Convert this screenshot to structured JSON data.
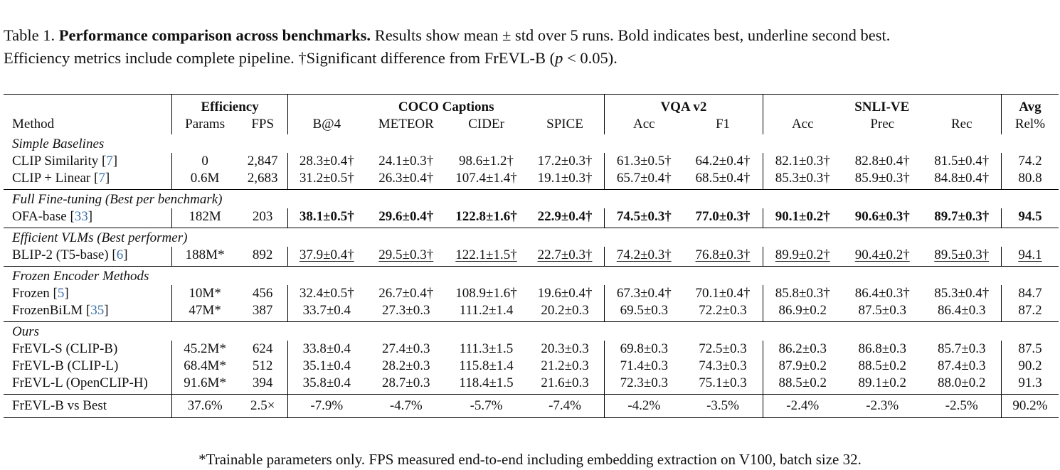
{
  "caption": {
    "label": "Table 1.",
    "title": "Performance comparison across benchmarks.",
    "text_1": "Results show mean ± std over 5 runs. Bold indicates best, underline second best.",
    "text_2": "Efficiency metrics include complete pipeline. †Significant difference from FrEVL-B (",
    "p_var": "p",
    "p_rel": " < 0.05)."
  },
  "groups": {
    "efficiency": "Efficiency",
    "coco": "COCO Captions",
    "vqa": "VQA v2",
    "snli": "SNLI-VE",
    "avg": "Avg"
  },
  "columns": [
    "Method",
    "Params",
    "FPS",
    "B@4",
    "METEOR",
    "CIDEr",
    "SPICE",
    "Acc",
    "F1",
    "Acc",
    "Prec",
    "Rec",
    "Rel%"
  ],
  "sections": [
    {
      "title": "Simple Baselines",
      "rows": [
        {
          "method": "CLIP Similarity",
          "cite": "7",
          "cells": [
            "0",
            "2,847",
            "28.3±0.4†",
            "24.1±0.3†",
            "98.6±1.2†",
            "17.2±0.3†",
            "61.3±0.5†",
            "64.2±0.4†",
            "82.1±0.3†",
            "82.8±0.4†",
            "81.5±0.4†",
            "74.2"
          ]
        },
        {
          "method": "CLIP + Linear",
          "cite": "7",
          "cells": [
            "0.6M",
            "2,683",
            "31.2±0.5†",
            "26.3±0.4†",
            "107.4±1.4†",
            "19.1±0.3†",
            "65.7±0.4†",
            "68.5±0.4†",
            "85.3±0.3†",
            "85.9±0.3†",
            "84.8±0.4†",
            "80.8"
          ]
        }
      ]
    },
    {
      "title": "Full Fine-tuning (Best per benchmark)",
      "rows": [
        {
          "method": "OFA-base",
          "cite": "33",
          "cells": [
            "182M",
            "203",
            "38.1±0.5†",
            "29.6±0.4†",
            "122.8±1.6†",
            "22.9±0.4†",
            "74.5±0.3†",
            "77.0±0.3†",
            "90.1±0.2†",
            "90.6±0.3†",
            "89.7±0.3†",
            "94.5"
          ]
        }
      ]
    },
    {
      "title": "Efficient VLMs (Best performer)",
      "rows": [
        {
          "method": "BLIP-2 (T5-base)",
          "cite": "6",
          "cells": [
            "188M*",
            "892",
            "37.9±0.4†",
            "29.5±0.3†",
            "122.1±1.5†",
            "22.7±0.3†",
            "74.2±0.3†",
            "76.8±0.3†",
            "89.9±0.2†",
            "90.4±0.2†",
            "89.5±0.3†",
            "94.1"
          ]
        }
      ]
    },
    {
      "title": "Frozen Encoder Methods",
      "rows": [
        {
          "method": "Frozen",
          "cite": "5",
          "cells": [
            "10M*",
            "456",
            "32.4±0.5†",
            "26.7±0.4†",
            "108.9±1.6†",
            "19.6±0.4†",
            "67.3±0.4†",
            "70.1±0.4†",
            "85.8±0.3†",
            "86.4±0.3†",
            "85.3±0.4†",
            "84.7"
          ]
        },
        {
          "method": "FrozenBiLM",
          "cite": "35",
          "cells": [
            "47M*",
            "387",
            "33.7±0.4",
            "27.3±0.3",
            "111.2±1.4",
            "20.2±0.3",
            "69.5±0.3",
            "72.2±0.3",
            "86.9±0.2",
            "87.5±0.3",
            "86.4±0.3",
            "87.2"
          ]
        }
      ]
    },
    {
      "title": "Ours",
      "rows": [
        {
          "method": "FrEVL-S (CLIP-B)",
          "cite": "",
          "cells": [
            "45.2M*",
            "624",
            "33.8±0.4",
            "27.4±0.3",
            "111.3±1.5",
            "20.3±0.3",
            "69.8±0.3",
            "72.5±0.3",
            "86.2±0.3",
            "86.8±0.3",
            "85.7±0.3",
            "87.5"
          ]
        },
        {
          "method": "FrEVL-B (CLIP-L)",
          "cite": "",
          "cells": [
            "68.4M*",
            "512",
            "35.1±0.4",
            "28.2±0.3",
            "115.8±1.4",
            "21.2±0.3",
            "71.4±0.3",
            "74.3±0.3",
            "87.9±0.2",
            "88.5±0.2",
            "87.4±0.3",
            "90.2"
          ]
        },
        {
          "method": "FrEVL-L (OpenCLIP-H)",
          "cite": "",
          "cells": [
            "91.6M*",
            "394",
            "35.8±0.4",
            "28.7±0.3",
            "118.4±1.5",
            "21.6±0.3",
            "72.3±0.3",
            "75.1±0.3",
            "88.5±0.2",
            "89.1±0.2",
            "88.0±0.2",
            "91.3"
          ]
        }
      ]
    }
  ],
  "summary": {
    "method": "FrEVL-B vs Best",
    "cells": [
      "37.6%",
      "2.5×",
      "-7.9%",
      "-4.7%",
      "-5.7%",
      "-7.4%",
      "-4.2%",
      "-3.5%",
      "-2.4%",
      "-2.3%",
      "-2.5%",
      "90.2%"
    ]
  },
  "footnote": "*Trainable parameters only. FPS measured end-to-end including embedding extraction on V100, batch size 32."
}
